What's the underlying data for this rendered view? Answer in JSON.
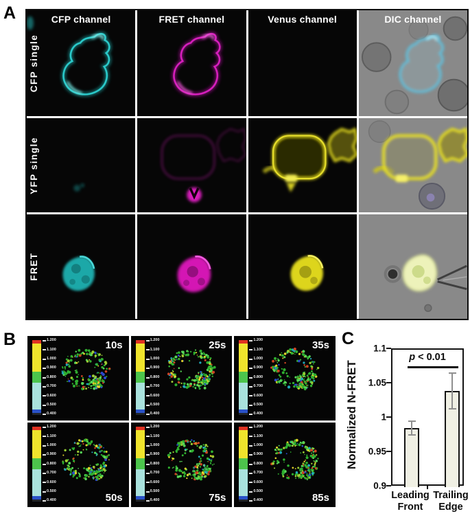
{
  "panel_a": {
    "label": "A",
    "column_headers": [
      "CFP channel",
      "FRET channel",
      "Venus channel",
      "DIC channel"
    ],
    "row_labels": [
      "CFP single",
      "YFP single",
      "FRET"
    ]
  },
  "panel_b": {
    "label": "B",
    "timepoints": [
      "10s",
      "25s",
      "35s",
      "50s",
      "75s",
      "85s"
    ],
    "colorbar_ticks": [
      "1.200",
      "1.100",
      "1.000",
      "0.900",
      "0.800",
      "0.700",
      "0.600",
      "0.500",
      "0.400"
    ],
    "colorbar_colors": {
      "red": "#e03323",
      "yellow": "#efe42c",
      "green": "#4cc44c",
      "cyan": "#a9e2dd",
      "blue": "#2a52c8",
      "dark": "#20242a"
    }
  },
  "panel_c": {
    "label": "C"
  },
  "colors": {
    "cfp_cyan": "#28c6c6",
    "fret_magenta": "#d21cb6",
    "venus_yellow": "#ded61f",
    "dic_gray": "#898989"
  },
  "chart_data": {
    "type": "bar",
    "title": "",
    "ylabel": "Normalized N-FRET",
    "categories": [
      "Leading Front",
      "Trailing Edge"
    ],
    "values": [
      0.986,
      1.04
    ],
    "error_bars": [
      0.01,
      0.026
    ],
    "ylim": [
      0.9,
      1.1
    ],
    "yticks": [
      0.9,
      0.95,
      1,
      1.05,
      1.1
    ],
    "ytick_labels": [
      "0.9",
      "0.95",
      "1",
      "1.05",
      "1.1"
    ],
    "annotation_p": "p",
    "annotation_rest": " < 0.01",
    "bar_fill": "#f0f0e4",
    "bar_border": "#141414",
    "error_color": "#8f8f8f",
    "grid": false,
    "legend": null
  }
}
